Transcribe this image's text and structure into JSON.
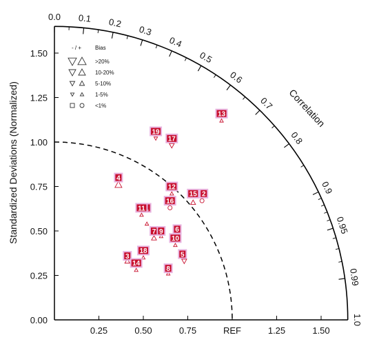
{
  "chart_data": {
    "type": "scatter",
    "subtype": "taylor-diagram",
    "ylabel": "Standardized Deviations (Normalized)",
    "xlabel": "",
    "correlation_label": "Correlation",
    "ref_label": "REF",
    "xlim": [
      0,
      1.65
    ],
    "ylim": [
      0,
      1.65
    ],
    "x_ticks": [
      "0.25",
      "0.50",
      "0.75",
      "REF",
      "1.25",
      "1.50"
    ],
    "y_ticks": [
      "0.00",
      "0.25",
      "0.50",
      "0.75",
      "1.00",
      "1.25",
      "1.50"
    ],
    "correlation_ticks": [
      "0.0",
      "0.1",
      "0.2",
      "0.3",
      "0.4",
      "0.5",
      "0.6",
      "0.7",
      "0.8",
      "0.9",
      "0.95",
      "0.99",
      "1.0"
    ],
    "ref_arc_radius": 1.0,
    "legend": {
      "header_symbols": "- / +",
      "header_label": "Bias",
      "items": [
        {
          "label": ">20%",
          "size": "xl"
        },
        {
          "label": "10-20%",
          "size": "l"
        },
        {
          "label": "5-10%",
          "size": "m"
        },
        {
          "label": "1-5%",
          "size": "s"
        },
        {
          "label": "<1%",
          "size": "circle"
        }
      ]
    },
    "models": [
      {
        "id": "1",
        "x": 0.52,
        "y": 0.63,
        "bias": "s-up",
        "mx": 0.52,
        "my": 0.54
      },
      {
        "id": "2",
        "x": 0.84,
        "y": 0.71,
        "bias": "circle",
        "mx": 0.83,
        "my": 0.67
      },
      {
        "id": "3",
        "x": 0.41,
        "y": 0.36,
        "bias": "m-up",
        "mx": 0.41,
        "my": 0.33
      },
      {
        "id": "4",
        "x": 0.36,
        "y": 0.8,
        "bias": "l-up",
        "mx": 0.36,
        "my": 0.76
      },
      {
        "id": "5",
        "x": 0.72,
        "y": 0.37,
        "bias": "m-down",
        "mx": 0.73,
        "my": 0.33
      },
      {
        "id": "6",
        "x": 0.69,
        "y": 0.51,
        "bias": "m-up",
        "mx": 0.69,
        "my": 0.47
      },
      {
        "id": "7",
        "x": 0.56,
        "y": 0.5,
        "bias": "m-up",
        "mx": 0.56,
        "my": 0.46
      },
      {
        "id": "8",
        "x": 0.64,
        "y": 0.29,
        "bias": "s-up",
        "mx": 0.64,
        "my": 0.26
      },
      {
        "id": "9",
        "x": 0.6,
        "y": 0.5,
        "bias": "s-up",
        "mx": 0.6,
        "my": 0.47
      },
      {
        "id": "10",
        "x": 0.68,
        "y": 0.46,
        "bias": "s-up",
        "mx": 0.68,
        "my": 0.42
      },
      {
        "id": "11",
        "x": 0.49,
        "y": 0.63,
        "bias": "s-up",
        "mx": 0.49,
        "my": 0.59
      },
      {
        "id": "12",
        "x": 0.66,
        "y": 0.75,
        "bias": "s-up",
        "mx": 0.66,
        "my": 0.71
      },
      {
        "id": "13",
        "x": 0.94,
        "y": 1.16,
        "bias": "s-up",
        "mx": 0.94,
        "my": 1.12
      },
      {
        "id": "14",
        "x": 0.46,
        "y": 0.32,
        "bias": "s-up",
        "mx": 0.46,
        "my": 0.28
      },
      {
        "id": "15",
        "x": 0.78,
        "y": 0.71,
        "bias": "m-up",
        "mx": 0.78,
        "my": 0.66
      },
      {
        "id": "16",
        "x": 0.65,
        "y": 0.67,
        "bias": "circle",
        "mx": 0.65,
        "my": 0.63
      },
      {
        "id": "17",
        "x": 0.66,
        "y": 1.02,
        "bias": "m-down",
        "mx": 0.66,
        "my": 0.98
      },
      {
        "id": "18",
        "x": 0.5,
        "y": 0.39,
        "bias": "s-up",
        "mx": 0.5,
        "my": 0.35
      },
      {
        "id": "19",
        "x": 0.57,
        "y": 1.06,
        "bias": "s-down",
        "mx": 0.57,
        "my": 1.02
      }
    ],
    "grid": false,
    "legend_position": "top-left"
  }
}
